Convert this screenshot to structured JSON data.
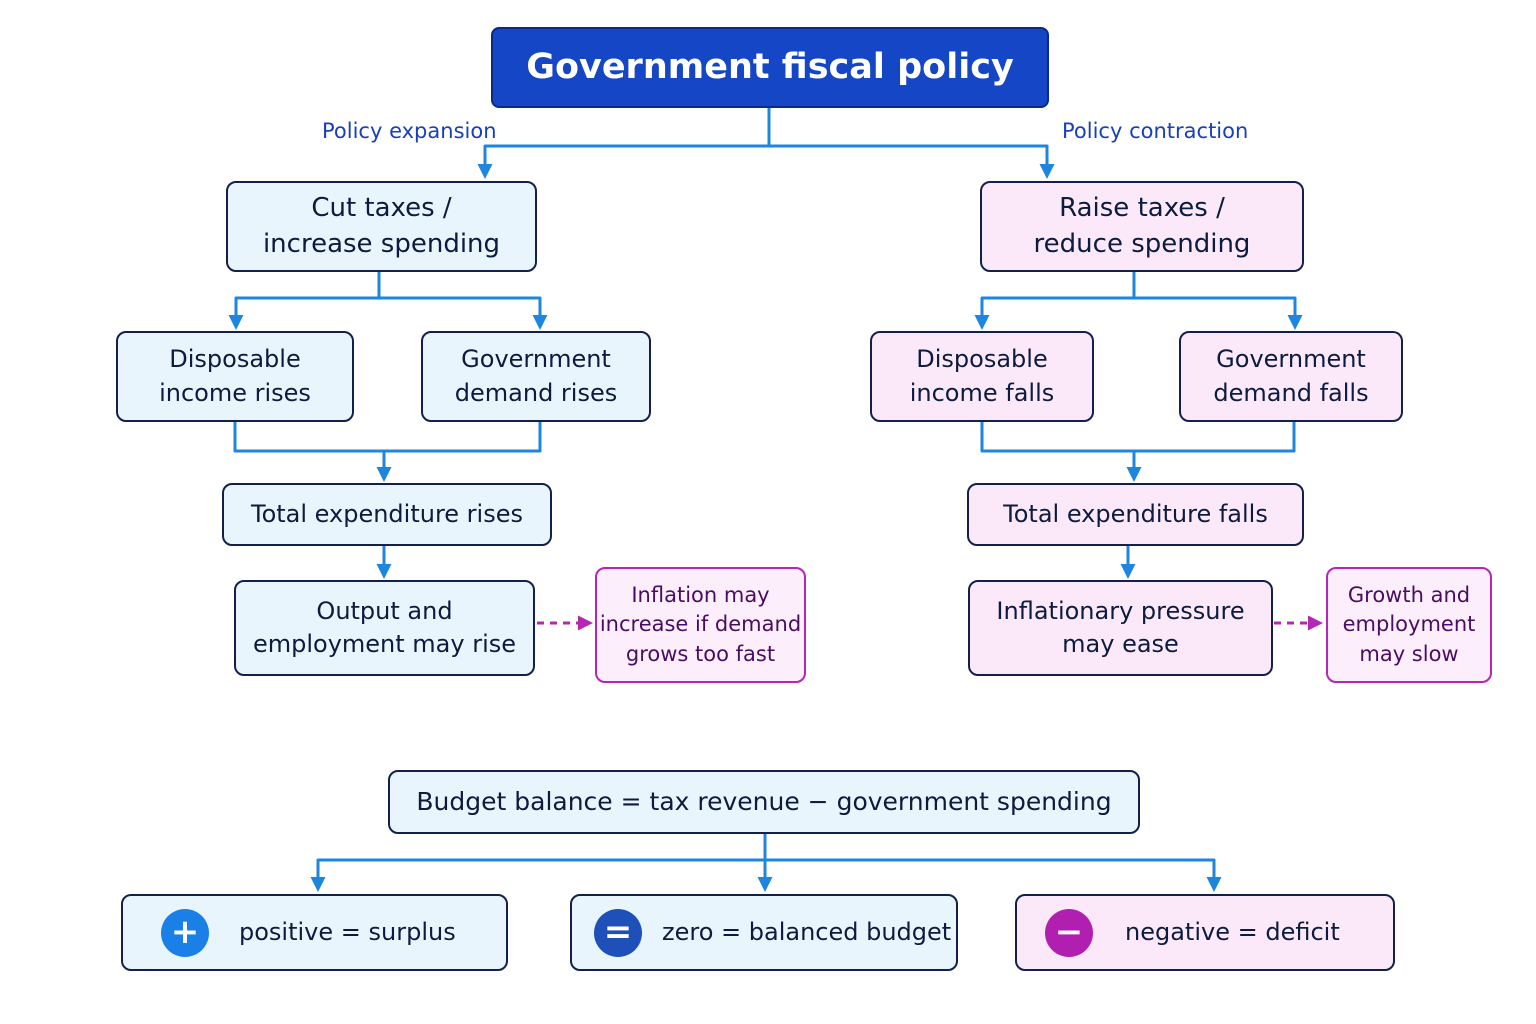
{
  "title": "Government fiscal policy",
  "branches": {
    "expansion": {
      "label": "Policy expansion",
      "action": "Cut taxes /\nincrease spending",
      "effect_income": "Disposable\nincome rises",
      "effect_demand": "Government\ndemand rises",
      "total": "Total expenditure rises",
      "outcome": "Output and\nemployment may rise",
      "side_effect": "Inflation may\nincrease if demand\ngrows too fast"
    },
    "contraction": {
      "label": "Policy contraction",
      "action": "Raise taxes /\nreduce spending",
      "effect_income": "Disposable\nincome falls",
      "effect_demand": "Government\ndemand falls",
      "total": "Total expenditure falls",
      "outcome": "Inflationary pressure\nmay ease",
      "side_effect": "Growth and\nemployment\nmay slow"
    }
  },
  "budget": {
    "formula": "Budget balance = tax revenue − government spending",
    "results": [
      {
        "symbol": "+",
        "icon": "plus-icon",
        "color": "#1a7fe6",
        "text": "positive = surplus"
      },
      {
        "symbol": "=",
        "icon": "equals-icon",
        "color": "#1f4fb8",
        "text": "zero = balanced budget"
      },
      {
        "symbol": "−",
        "icon": "minus-icon",
        "color": "#b01fb0",
        "text": "negative = deficit"
      }
    ]
  },
  "colors": {
    "title_fill": "#1546c5",
    "expansion_fill": "#e9f5fd",
    "contraction_fill": "#fbe9f9",
    "connector": "#1f86e0",
    "dashed_connector": "#b526b5"
  }
}
